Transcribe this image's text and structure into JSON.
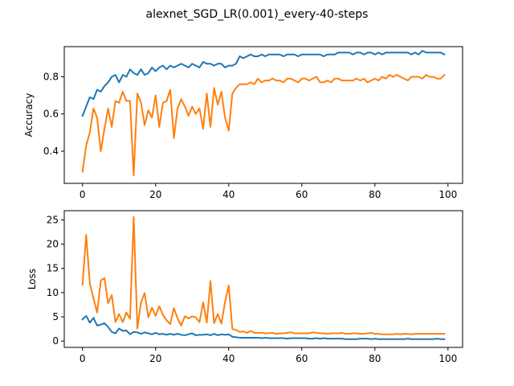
{
  "figure": {
    "title": "alexnet_SGD_LR(0.001)_every-40-steps"
  },
  "chart_data": [
    {
      "type": "line",
      "title": "",
      "xlabel": "",
      "ylabel": "Accuracy",
      "xlim": [
        -5,
        104
      ],
      "ylim": [
        0.227,
        0.962
      ],
      "xticks": [
        0,
        20,
        40,
        60,
        80,
        100
      ],
      "yticks": [
        0.4,
        0.6,
        0.8
      ],
      "ytick_labels": [
        "0.4",
        "0.6",
        "0.8"
      ],
      "grid": false,
      "x": [
        0,
        1,
        2,
        3,
        4,
        5,
        6,
        7,
        8,
        9,
        10,
        11,
        12,
        13,
        14,
        15,
        16,
        17,
        18,
        19,
        20,
        21,
        22,
        23,
        24,
        25,
        26,
        27,
        28,
        29,
        30,
        31,
        32,
        33,
        34,
        35,
        36,
        37,
        38,
        39,
        40,
        41,
        42,
        43,
        44,
        45,
        46,
        47,
        48,
        49,
        50,
        51,
        52,
        53,
        54,
        55,
        56,
        57,
        58,
        59,
        60,
        61,
        62,
        63,
        64,
        65,
        66,
        67,
        68,
        69,
        70,
        71,
        72,
        73,
        74,
        75,
        76,
        77,
        78,
        79,
        80,
        81,
        82,
        83,
        84,
        85,
        86,
        87,
        88,
        89,
        90,
        91,
        92,
        93,
        94,
        95,
        96,
        97,
        98,
        99
      ],
      "series": [
        {
          "color": "#1f77b4",
          "values": [
            0.59,
            0.64,
            0.69,
            0.68,
            0.73,
            0.72,
            0.75,
            0.77,
            0.8,
            0.81,
            0.77,
            0.81,
            0.8,
            0.84,
            0.82,
            0.81,
            0.84,
            0.81,
            0.82,
            0.85,
            0.83,
            0.85,
            0.86,
            0.84,
            0.86,
            0.85,
            0.86,
            0.87,
            0.86,
            0.85,
            0.87,
            0.86,
            0.85,
            0.88,
            0.87,
            0.87,
            0.86,
            0.87,
            0.87,
            0.85,
            0.86,
            0.86,
            0.87,
            0.91,
            0.9,
            0.91,
            0.92,
            0.91,
            0.91,
            0.92,
            0.91,
            0.92,
            0.92,
            0.92,
            0.92,
            0.91,
            0.92,
            0.92,
            0.92,
            0.91,
            0.92,
            0.92,
            0.92,
            0.92,
            0.92,
            0.92,
            0.91,
            0.92,
            0.92,
            0.92,
            0.93,
            0.93,
            0.93,
            0.93,
            0.92,
            0.93,
            0.93,
            0.92,
            0.93,
            0.93,
            0.92,
            0.93,
            0.92,
            0.93,
            0.93,
            0.93,
            0.93,
            0.93,
            0.93,
            0.93,
            0.92,
            0.93,
            0.92,
            0.94,
            0.93,
            0.93,
            0.93,
            0.93,
            0.93,
            0.92
          ]
        },
        {
          "color": "#ff7f0e",
          "values": [
            0.29,
            0.43,
            0.5,
            0.63,
            0.58,
            0.4,
            0.52,
            0.63,
            0.53,
            0.67,
            0.66,
            0.72,
            0.67,
            0.67,
            0.27,
            0.71,
            0.66,
            0.54,
            0.62,
            0.58,
            0.7,
            0.53,
            0.66,
            0.67,
            0.73,
            0.47,
            0.63,
            0.68,
            0.64,
            0.59,
            0.64,
            0.6,
            0.63,
            0.52,
            0.71,
            0.53,
            0.74,
            0.65,
            0.72,
            0.58,
            0.51,
            0.71,
            0.74,
            0.76,
            0.76,
            0.76,
            0.77,
            0.76,
            0.79,
            0.77,
            0.78,
            0.78,
            0.79,
            0.78,
            0.78,
            0.77,
            0.79,
            0.79,
            0.78,
            0.77,
            0.79,
            0.79,
            0.78,
            0.79,
            0.8,
            0.77,
            0.77,
            0.78,
            0.77,
            0.79,
            0.79,
            0.78,
            0.78,
            0.78,
            0.78,
            0.79,
            0.78,
            0.79,
            0.77,
            0.78,
            0.79,
            0.78,
            0.8,
            0.79,
            0.81,
            0.8,
            0.81,
            0.8,
            0.79,
            0.78,
            0.8,
            0.8,
            0.8,
            0.79,
            0.81,
            0.8,
            0.8,
            0.79,
            0.79,
            0.81
          ]
        }
      ]
    },
    {
      "type": "line",
      "title": "",
      "xlabel": "",
      "ylabel": "Loss",
      "xlim": [
        -5,
        104
      ],
      "ylim": [
        -1.3,
        26.9
      ],
      "xticks": [
        0,
        20,
        40,
        60,
        80,
        100
      ],
      "yticks": [
        0,
        5,
        10,
        15,
        20,
        25
      ],
      "ytick_labels": [
        "0",
        "5",
        "10",
        "15",
        "20",
        "25"
      ],
      "grid": false,
      "x": [
        0,
        1,
        2,
        3,
        4,
        5,
        6,
        7,
        8,
        9,
        10,
        11,
        12,
        13,
        14,
        15,
        16,
        17,
        18,
        19,
        20,
        21,
        22,
        23,
        24,
        25,
        26,
        27,
        28,
        29,
        30,
        31,
        32,
        33,
        34,
        35,
        36,
        37,
        38,
        39,
        40,
        41,
        42,
        43,
        44,
        45,
        46,
        47,
        48,
        49,
        50,
        51,
        52,
        53,
        54,
        55,
        56,
        57,
        58,
        59,
        60,
        61,
        62,
        63,
        64,
        65,
        66,
        67,
        68,
        69,
        70,
        71,
        72,
        73,
        74,
        75,
        76,
        77,
        78,
        79,
        80,
        81,
        82,
        83,
        84,
        85,
        86,
        87,
        88,
        89,
        90,
        91,
        92,
        93,
        94,
        95,
        96,
        97,
        98,
        99
      ],
      "series": [
        {
          "color": "#1f77b4",
          "values": [
            4.5,
            5.2,
            3.8,
            4.8,
            3.2,
            3.4,
            3.7,
            2.9,
            1.9,
            1.6,
            2.6,
            2.1,
            2.2,
            1.4,
            1.9,
            1.8,
            1.5,
            1.8,
            1.6,
            1.4,
            1.7,
            1.4,
            1.5,
            1.3,
            1.5,
            1.3,
            1.5,
            1.3,
            1.2,
            1.4,
            1.6,
            1.2,
            1.3,
            1.3,
            1.4,
            1.2,
            1.5,
            1.2,
            1.4,
            1.3,
            1.4,
            0.9,
            0.8,
            0.7,
            0.7,
            0.7,
            0.7,
            0.7,
            0.7,
            0.6,
            0.7,
            0.6,
            0.6,
            0.6,
            0.6,
            0.6,
            0.5,
            0.6,
            0.6,
            0.6,
            0.6,
            0.6,
            0.5,
            0.5,
            0.6,
            0.5,
            0.6,
            0.5,
            0.5,
            0.5,
            0.5,
            0.5,
            0.4,
            0.4,
            0.4,
            0.4,
            0.5,
            0.5,
            0.5,
            0.4,
            0.5,
            0.4,
            0.4,
            0.4,
            0.4,
            0.4,
            0.4,
            0.4,
            0.4,
            0.5,
            0.4,
            0.4,
            0.4,
            0.4,
            0.4,
            0.4,
            0.4,
            0.5,
            0.4,
            0.4
          ]
        },
        {
          "color": "#ff7f0e",
          "values": [
            11.6,
            21.9,
            11.9,
            8.8,
            5.9,
            12.5,
            13.0,
            7.8,
            9.5,
            3.9,
            5.6,
            3.9,
            5.9,
            4.6,
            25.6,
            2.6,
            8.0,
            9.9,
            4.9,
            6.9,
            5.2,
            7.2,
            5.4,
            4.3,
            3.5,
            6.8,
            4.7,
            3.2,
            5.1,
            4.7,
            5.1,
            4.9,
            3.9,
            8.0,
            3.8,
            12.4,
            3.7,
            5.6,
            3.6,
            8.1,
            11.5,
            2.5,
            2.3,
            1.9,
            2.0,
            1.7,
            2.1,
            1.7,
            1.7,
            1.7,
            1.6,
            1.6,
            1.7,
            1.5,
            1.6,
            1.6,
            1.7,
            1.8,
            1.6,
            1.6,
            1.6,
            1.6,
            1.6,
            1.8,
            1.7,
            1.6,
            1.6,
            1.5,
            1.6,
            1.6,
            1.6,
            1.7,
            1.5,
            1.5,
            1.6,
            1.6,
            1.5,
            1.5,
            1.6,
            1.7,
            1.5,
            1.5,
            1.4,
            1.4,
            1.4,
            1.4,
            1.5,
            1.4,
            1.5,
            1.5,
            1.4,
            1.5,
            1.5,
            1.5,
            1.5,
            1.5,
            1.5,
            1.5,
            1.5,
            1.5
          ]
        }
      ]
    }
  ]
}
